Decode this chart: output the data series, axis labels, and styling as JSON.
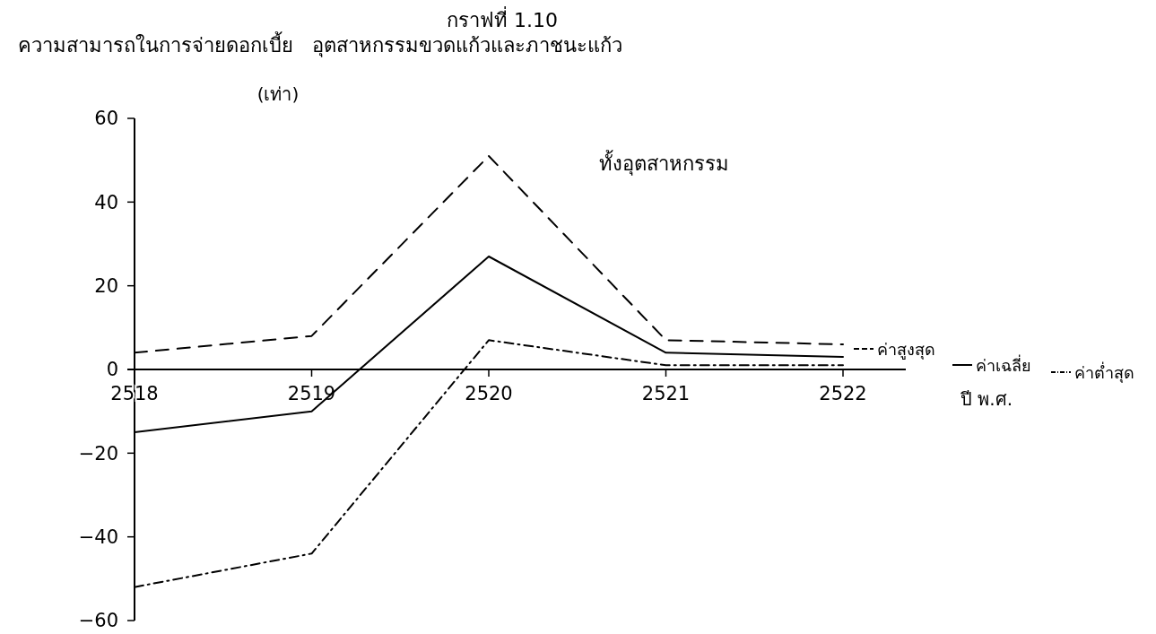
{
  "chart_data": {
    "type": "line",
    "title": "กราฟที่ 1.10",
    "subtitle": "ความสามารถในการจ่ายดอกเบี้ย   อุตสาหกรรมขวดแก้วและภาชนะแก้ว",
    "ylabel": "(เท่า)",
    "xlabel": "ปี พ.ศ.",
    "annotations": [
      "ทั้งอุตสาหกรรม"
    ],
    "categories": [
      "2518",
      "2519",
      "2520",
      "2521",
      "2522"
    ],
    "series": [
      {
        "name": "ค่าสูงสุด",
        "color": "#000000",
        "line_style": "dashed",
        "values": [
          4,
          8,
          51,
          7,
          6
        ]
      },
      {
        "name": "ค่าเฉลี่ย",
        "color": "#000000",
        "line_style": "solid",
        "values": [
          -15,
          -10,
          27,
          4,
          3
        ]
      },
      {
        "name": "ค่าต่ำสุด",
        "color": "#000000",
        "line_style": "dotted",
        "values": [
          -52,
          -44,
          7,
          1,
          1
        ]
      }
    ],
    "ylim": [
      -60,
      60
    ],
    "yticks": [
      -60,
      -40,
      -20,
      0,
      20,
      40,
      60
    ],
    "grid": false,
    "legend": "right",
    "marker": "none"
  }
}
